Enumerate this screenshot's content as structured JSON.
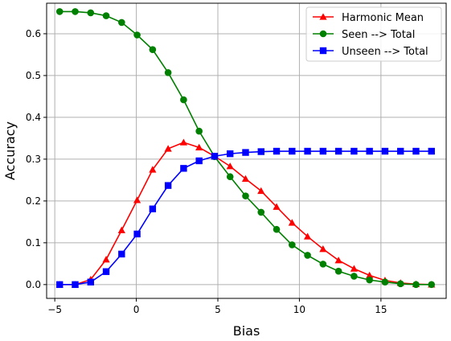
{
  "chart_data": {
    "type": "line",
    "xlabel": "Bias",
    "ylabel": "Accuracy",
    "xlim": [
      -5.5,
      19
    ],
    "ylim": [
      -0.033,
      0.673
    ],
    "xticks": [
      -5,
      0,
      5,
      10,
      15
    ],
    "yticks": [
      0.0,
      0.1,
      0.2,
      0.3,
      0.4,
      0.5,
      0.6
    ],
    "xtick_labels": [
      "−5",
      "0",
      "5",
      "10",
      "15"
    ],
    "ytick_labels": [
      "0.0",
      "0.1",
      "0.2",
      "0.3",
      "0.4",
      "0.5",
      "0.6"
    ],
    "grid": true,
    "legend_position": "top-right",
    "x": [
      -4.7,
      -3.75,
      -2.8,
      -1.85,
      -0.9,
      0.05,
      1.0,
      1.95,
      2.9,
      3.85,
      4.8,
      5.75,
      6.7,
      7.65,
      8.6,
      9.55,
      10.5,
      11.45,
      12.4,
      13.35,
      14.3,
      15.25,
      16.2,
      17.15,
      18.1
    ],
    "series": [
      {
        "name": "Harmonic Mean",
        "color": "#ff0000",
        "marker": "triangle",
        "values": [
          0.0,
          0.0,
          0.012,
          0.06,
          0.13,
          0.202,
          0.275,
          0.325,
          0.34,
          0.328,
          0.307,
          0.283,
          0.253,
          0.224,
          0.186,
          0.148,
          0.115,
          0.085,
          0.058,
          0.038,
          0.022,
          0.01,
          0.004,
          0.001,
          0.0
        ]
      },
      {
        "name": "Seen --> Total",
        "color": "#008000",
        "marker": "circle",
        "values": [
          0.653,
          0.653,
          0.65,
          0.643,
          0.627,
          0.597,
          0.562,
          0.507,
          0.442,
          0.367,
          0.306,
          0.258,
          0.212,
          0.173,
          0.132,
          0.095,
          0.07,
          0.049,
          0.032,
          0.02,
          0.011,
          0.006,
          0.002,
          0.0,
          0.0
        ]
      },
      {
        "name": "Unseen --> Total",
        "color": "#0000ff",
        "marker": "square",
        "values": [
          0.0,
          0.0,
          0.006,
          0.031,
          0.073,
          0.121,
          0.181,
          0.237,
          0.278,
          0.296,
          0.307,
          0.313,
          0.316,
          0.318,
          0.319,
          0.319,
          0.319,
          0.319,
          0.319,
          0.319,
          0.319,
          0.319,
          0.319,
          0.319,
          0.319
        ]
      }
    ]
  }
}
